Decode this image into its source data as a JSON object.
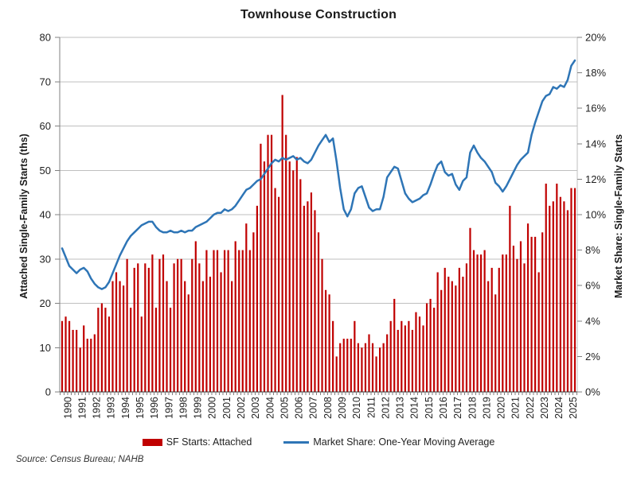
{
  "title": "Townhouse Construction",
  "source_note": "Source: Census Bureau; NAHB",
  "legend": {
    "bars_label": "SF Starts: Attached",
    "line_label": "Market Share: One-Year Moving Average"
  },
  "colors": {
    "bar": "#C00000",
    "line": "#2E75B6",
    "grid": "#BFBFBF",
    "axis_dark": "#333333",
    "axis_light": "#808080",
    "text": "#1f1f1f"
  },
  "chart_data": {
    "type": "bar",
    "title": "Townhouse Construction",
    "x": {
      "frequency": "quarterly",
      "start_year": 1990,
      "year_labels": [
        "1990",
        "1991",
        "1992",
        "1993",
        "1994",
        "1995",
        "1996",
        "1997",
        "1998",
        "1999",
        "2000",
        "2001",
        "2002",
        "2003",
        "2004",
        "2005",
        "2006",
        "2007",
        "2008",
        "2009",
        "2010",
        "2011",
        "2012",
        "2013",
        "2014",
        "2015",
        "2016",
        "2017",
        "2018",
        "2019",
        "2020",
        "2021",
        "2022",
        "2023",
        "2024",
        "2025"
      ]
    },
    "left_axis": {
      "label": "Attached Single-Family Starts (ths)",
      "min": 0,
      "max": 80,
      "step": 10
    },
    "right_axis": {
      "label": "Market Share: Single-Family Starts",
      "min": 0,
      "max": 20,
      "step": 2,
      "suffix": "%"
    },
    "grid": true,
    "legend_position": "bottom",
    "series": [
      {
        "name": "SF Starts: Attached",
        "type": "bar",
        "axis": "left",
        "color": "#C00000",
        "values": [
          16,
          17,
          16,
          14,
          14,
          10,
          15,
          12,
          12,
          13,
          19,
          20,
          19,
          17,
          25,
          27,
          25,
          24,
          30,
          19,
          28,
          29,
          17,
          29,
          28,
          31,
          19,
          30,
          31,
          25,
          19,
          29,
          30,
          30,
          25,
          22,
          30,
          34,
          29,
          25,
          32,
          26,
          32,
          32,
          27,
          32,
          32,
          25,
          34,
          32,
          32,
          38,
          32,
          36,
          42,
          56,
          52,
          58,
          58,
          46,
          44,
          67,
          58,
          52,
          50,
          53,
          48,
          42,
          43,
          45,
          41,
          36,
          30,
          23,
          22,
          16,
          8,
          11,
          12,
          12,
          12,
          16,
          11,
          10,
          11,
          13,
          11,
          8,
          10,
          11,
          13,
          16,
          21,
          14,
          16,
          15,
          16,
          14,
          18,
          17,
          15,
          20,
          21,
          19,
          27,
          23,
          28,
          26,
          25,
          24,
          28,
          26,
          29,
          37,
          32,
          31,
          31,
          32,
          25,
          28,
          22,
          28,
          31,
          31,
          42,
          33,
          30,
          34,
          29,
          38,
          35,
          35,
          27,
          36,
          47,
          42,
          43,
          47,
          44,
          43,
          41,
          46,
          46
        ]
      },
      {
        "name": "Market Share: One-Year Moving Average",
        "type": "line",
        "axis": "right",
        "color": "#2E75B6",
        "values": [
          8.1,
          7.6,
          7.1,
          6.9,
          6.7,
          6.9,
          7.0,
          6.8,
          6.4,
          6.1,
          5.9,
          5.8,
          5.9,
          6.2,
          6.7,
          7.2,
          7.7,
          8.1,
          8.5,
          8.8,
          9.0,
          9.2,
          9.4,
          9.5,
          9.6,
          9.6,
          9.3,
          9.1,
          9.0,
          9.0,
          9.1,
          9.0,
          9.0,
          9.1,
          9.0,
          9.1,
          9.1,
          9.3,
          9.4,
          9.5,
          9.6,
          9.8,
          10.0,
          10.1,
          10.1,
          10.3,
          10.2,
          10.3,
          10.5,
          10.8,
          11.1,
          11.4,
          11.5,
          11.7,
          11.9,
          12.0,
          12.3,
          12.6,
          12.9,
          13.1,
          13.0,
          13.2,
          13.1,
          13.2,
          13.3,
          13.1,
          13.2,
          13.0,
          12.9,
          13.1,
          13.5,
          13.9,
          14.2,
          14.5,
          14.1,
          14.3,
          13.0,
          11.5,
          10.3,
          9.9,
          10.3,
          11.2,
          11.5,
          11.6,
          11.0,
          10.4,
          10.2,
          10.3,
          10.3,
          11.0,
          12.1,
          12.4,
          12.7,
          12.6,
          11.9,
          11.2,
          10.9,
          10.7,
          10.8,
          10.9,
          11.1,
          11.2,
          11.7,
          12.3,
          12.8,
          13.0,
          12.4,
          12.2,
          12.3,
          11.7,
          11.4,
          11.9,
          12.1,
          13.5,
          13.9,
          13.5,
          13.2,
          13.0,
          12.7,
          12.4,
          11.8,
          11.6,
          11.3,
          11.6,
          12.0,
          12.4,
          12.8,
          13.1,
          13.3,
          13.5,
          14.5,
          15.2,
          15.8,
          16.4,
          16.7,
          16.8,
          17.2,
          17.1,
          17.3,
          17.2,
          17.6,
          18.4,
          18.7
        ]
      }
    ]
  }
}
